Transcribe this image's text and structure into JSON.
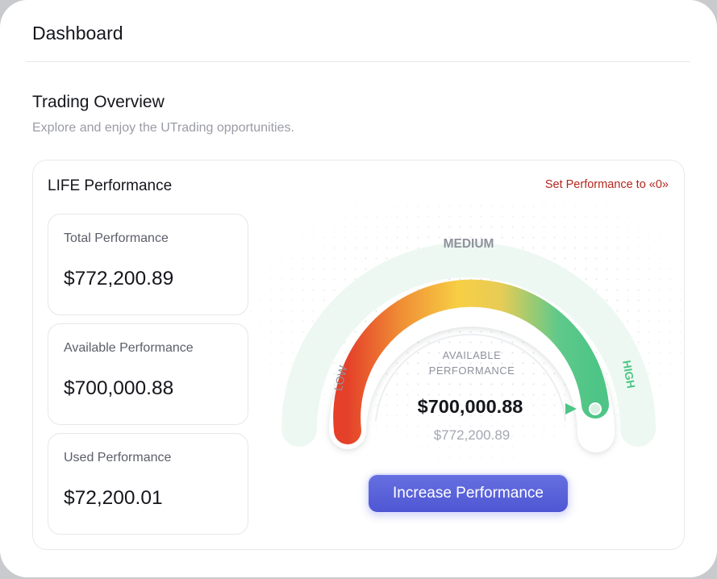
{
  "header": {
    "title": "Dashboard"
  },
  "overview": {
    "title": "Trading Overview",
    "subtitle": "Explore and enjoy the UTrading opportunities."
  },
  "performance_card": {
    "title": "LIFE Performance",
    "reset_link": "Set Performance to «0»",
    "stats": [
      {
        "label": "Total Performance",
        "value": "$772,200.89"
      },
      {
        "label": "Available Performance",
        "value": "$700,000.88"
      },
      {
        "label": "Used Performance",
        "value": "$72,200.01"
      }
    ],
    "gauge": {
      "label_low": "LOW",
      "label_medium": "MEDIUM",
      "label_high": "HIGH",
      "center_caption_line1": "AVAILABLE",
      "center_caption_line2": "PERFORMANCE",
      "center_value": "$700,000.88",
      "center_total": "$772,200.89",
      "level": 0.91,
      "colors": {
        "low": "#e4402a",
        "mid_low": "#f08f35",
        "medium": "#f7cf45",
        "high": "#4ec586",
        "band": "#eef8f2"
      }
    },
    "cta_label": "Increase Performance"
  }
}
